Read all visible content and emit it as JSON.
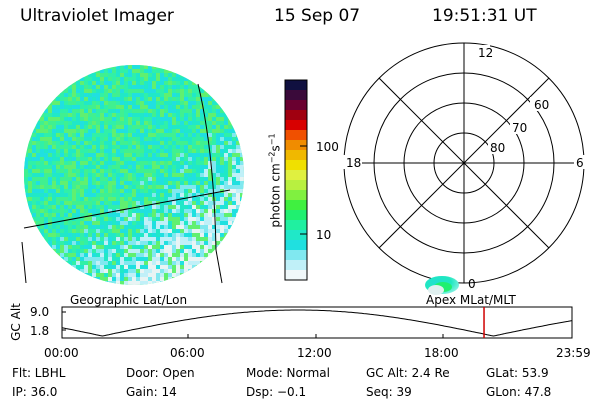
{
  "header": {
    "instrument": "Ultraviolet Imager",
    "date": "15 Sep 07",
    "time": "19:51:31 UT"
  },
  "colorbar": {
    "unit_label": "photon cm",
    "unit_exp1": "−2",
    "unit_mid": "s",
    "unit_exp2": "−1",
    "tick_100": "100",
    "tick_10": "10",
    "colors": [
      "#101040",
      "#3a0a3a",
      "#6a0030",
      "#a00010",
      "#d80000",
      "#f05000",
      "#f08c00",
      "#f0b800",
      "#f0e000",
      "#e0f040",
      "#b8f040",
      "#80f040",
      "#40f040",
      "#20f070",
      "#20f0a0",
      "#20e8c8",
      "#20e0e0",
      "#80e8f0",
      "#c0f0f8",
      "#f0f8fa"
    ]
  },
  "polar_plot": {
    "mlt_top": "12",
    "mlt_left": "18",
    "mlt_right": "6",
    "mlt_bottom": "0",
    "lat_60": "60",
    "lat_70": "70",
    "lat_80": "80"
  },
  "timeline": {
    "left_title": "Geographic Lat/Lon",
    "right_title": "Apex  MLat/MLT",
    "y_axis_label": "GC Alt",
    "y_max": "9.0",
    "y_min": "1.8",
    "x_ticks": [
      "00:00",
      "06:00",
      "12:00",
      "18:00",
      "23:59"
    ],
    "current_time_hours": 19.86,
    "marker_color": "#d00000"
  },
  "footer": {
    "flt": "Flt: LBHL",
    "door": "Door: Open",
    "mode": "Mode: Normal",
    "gc_alt": "GC Alt: 2.4 Re",
    "glat": "GLat: 53.9",
    "ip": "IP: 36.0",
    "gain": "Gain: 14",
    "dsp": "Dsp:   −0.1",
    "seq": "Seq: 39",
    "glon": "GLon:  47.8"
  }
}
